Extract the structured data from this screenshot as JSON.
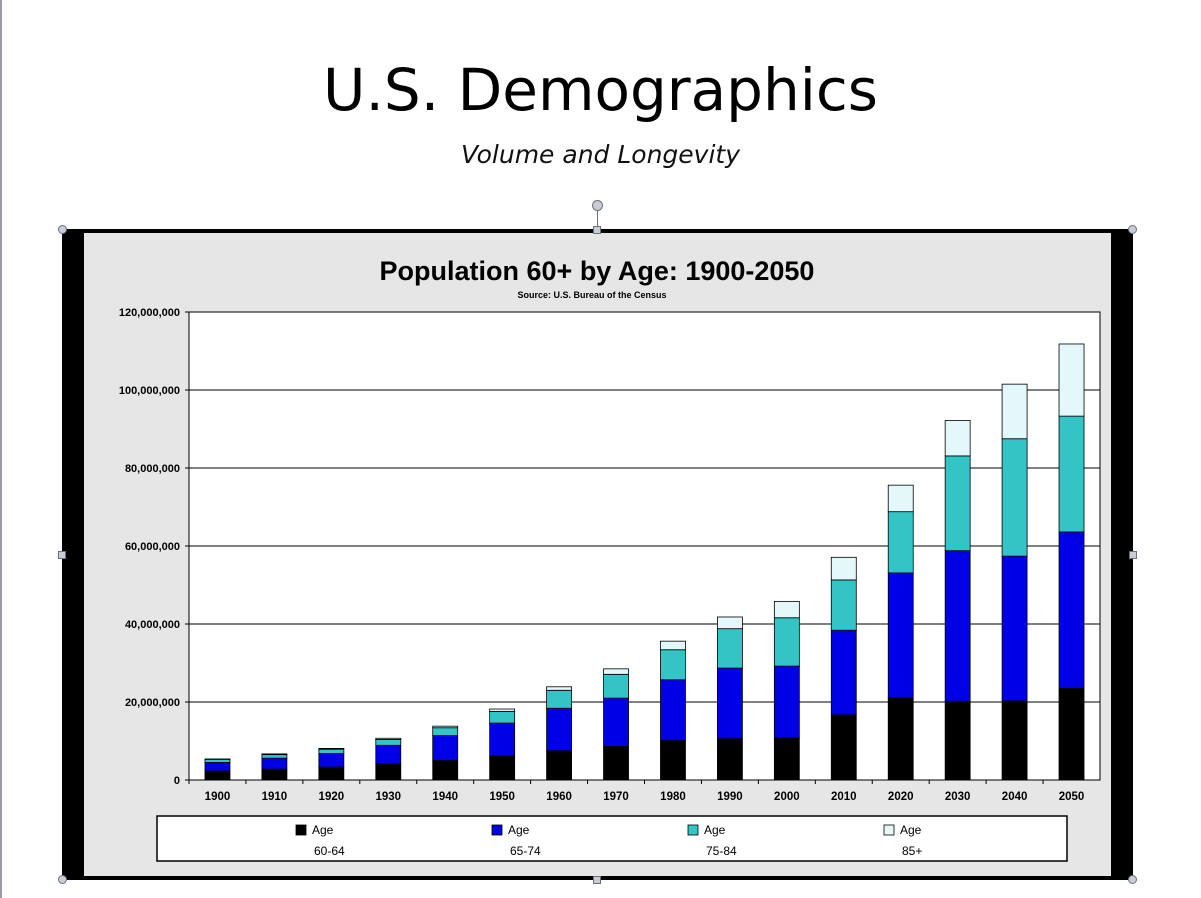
{
  "slide": {
    "title": "U.S. Demographics",
    "subtitle": "Volume and Longevity"
  },
  "chart_data": {
    "type": "bar",
    "stacked": true,
    "title": "Population 60+ by Age: 1900-2050",
    "subtitle": "Source: U.S. Bureau of the Census",
    "categories": [
      "1900",
      "1910",
      "1920",
      "1930",
      "1940",
      "1950",
      "1960",
      "1970",
      "1980",
      "1990",
      "2000",
      "2010",
      "2020",
      "2030",
      "2040",
      "2050"
    ],
    "ylim": [
      0,
      120000000
    ],
    "yticks": [
      0,
      20000000,
      40000000,
      60000000,
      80000000,
      100000000,
      120000000
    ],
    "ytick_labels": [
      "0",
      "20,000,000",
      "40,000,000",
      "60,000,000",
      "80,000,000",
      "100,000,000",
      "120,000,000"
    ],
    "grid": true,
    "legend_position": "bottom",
    "series": [
      {
        "name_line1": "Age",
        "name_line2": "60-64",
        "color": "#000000",
        "values": [
          2300000,
          2800000,
          3300000,
          4200000,
          5000000,
          6200000,
          7500000,
          8600000,
          10100000,
          10600000,
          10800000,
          16700000,
          21100000,
          20200000,
          20300000,
          23500000
        ]
      },
      {
        "name_line1": "Age",
        "name_line2": "65-74",
        "color": "#0000e6",
        "values": [
          2200000,
          2800000,
          3500000,
          4700000,
          6400000,
          8400000,
          10900000,
          12400000,
          15600000,
          18100000,
          18400000,
          21700000,
          32000000,
          38600000,
          37100000,
          40100000
        ]
      },
      {
        "name_line1": "Age",
        "name_line2": "75-84",
        "color": "#33c5c5",
        "values": [
          800000,
          900000,
          1100000,
          1500000,
          2000000,
          3000000,
          4600000,
          6100000,
          7700000,
          10100000,
          12400000,
          12900000,
          15700000,
          24300000,
          30100000,
          29700000
        ]
      },
      {
        "name_line1": "Age",
        "name_line2": "85+",
        "color": "#e4f8fb",
        "values": [
          100000,
          200000,
          200000,
          300000,
          400000,
          600000,
          900000,
          1400000,
          2200000,
          3000000,
          4200000,
          5800000,
          6800000,
          9100000,
          14000000,
          18500000
        ]
      }
    ]
  }
}
